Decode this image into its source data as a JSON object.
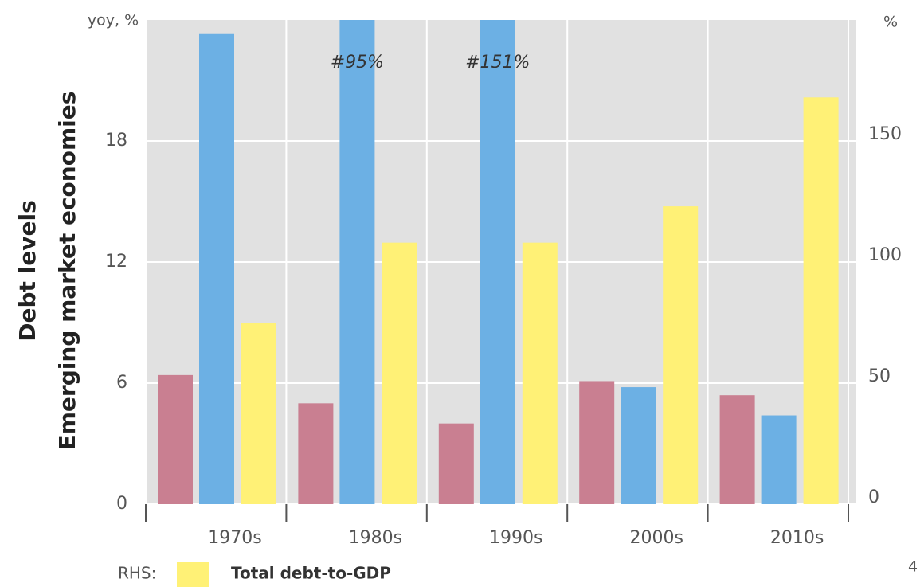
{
  "chart_data": {
    "type": "bar",
    "y_title": [
      "Debt levels",
      "Emerging market economies"
    ],
    "y_unit": "yoy, %",
    "y2_unit": "%",
    "categories": [
      "1970s",
      "1980s",
      "1990s",
      "2000s",
      "2010s"
    ],
    "series": [
      {
        "color": "#c97f91",
        "values": [
          6.4,
          5.0,
          4.0,
          6.1,
          5.4
        ]
      },
      {
        "color": "#6cb0e4",
        "values": [
          23.3,
          95,
          151,
          5.8,
          4.4
        ],
        "value_labels": [
          null,
          "#95%",
          "#151%",
          null,
          null
        ]
      },
      {
        "name": "Total debt-to-GDP",
        "color": "#fff176",
        "axis": "y2",
        "values": [
          75,
          108,
          108,
          123,
          168
        ]
      }
    ],
    "legend_prefix": "RHS:",
    "ylim": [
      0,
      24
    ],
    "yticks": [
      0,
      6,
      12,
      18
    ],
    "y2lim": [
      0,
      200
    ],
    "y2ticks": [
      0,
      50,
      100,
      150
    ],
    "grid": true,
    "page_number": "4"
  }
}
